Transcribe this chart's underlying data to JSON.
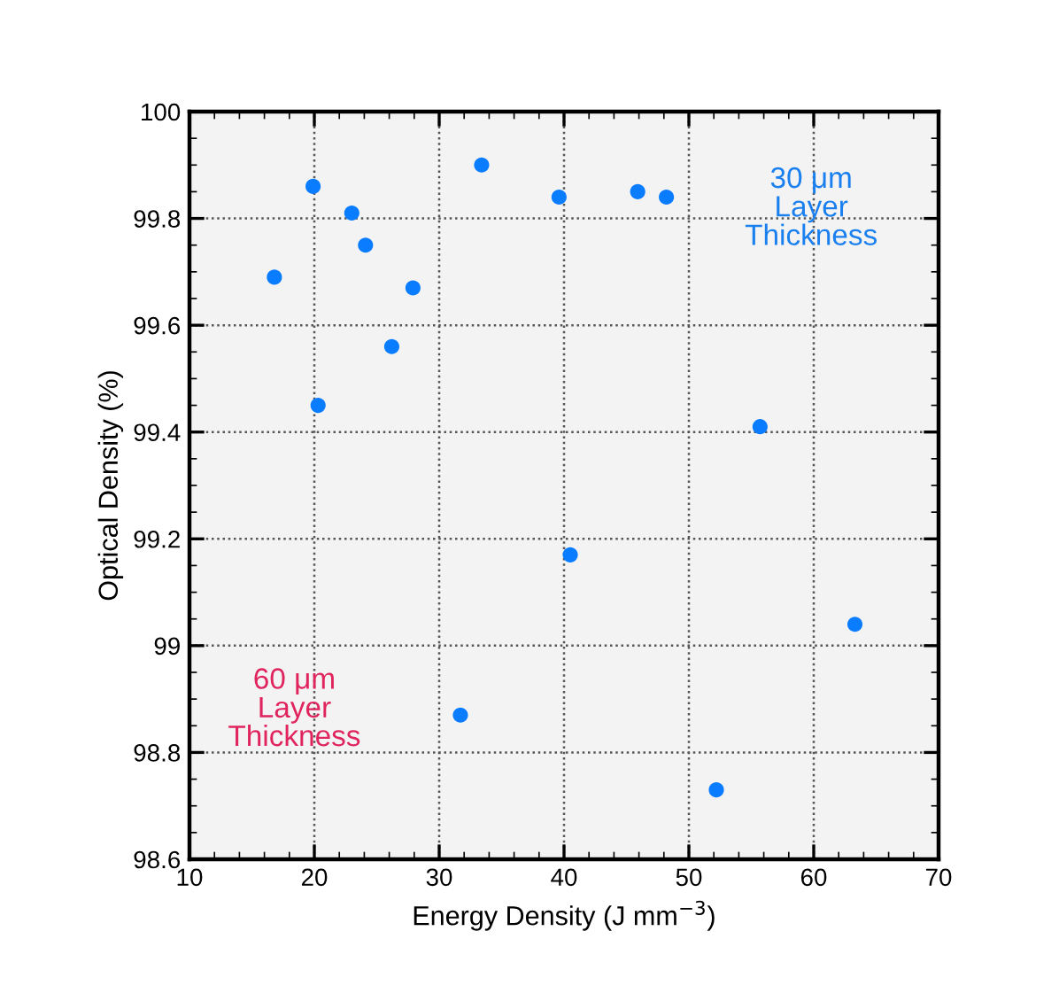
{
  "chart_data": {
    "type": "scatter",
    "xlabel": "Energy Density (J mm$^{−3}$)",
    "ylabel": "Optical Density (%)",
    "x": [
      19.9,
      33.4,
      23.0,
      24.1,
      16.8,
      27.9,
      26.2,
      20.3,
      39.6,
      45.9,
      48.2,
      55.7,
      40.5,
      63.3,
      31.7,
      52.2
    ],
    "values": [
      99.86,
      99.9,
      99.81,
      99.75,
      99.69,
      99.67,
      99.56,
      99.45,
      99.84,
      99.85,
      99.84,
      99.41,
      99.17,
      99.04,
      98.87,
      98.73
    ],
    "color": "#0a7cff",
    "marker": "circle",
    "xlim": [
      10,
      70
    ],
    "xticks": [
      10,
      20,
      30,
      40,
      50,
      60,
      70
    ],
    "ylim": [
      98.6,
      100
    ],
    "yticks": [
      98.6,
      98.8,
      {
        "value": 99.0,
        "label": "99"
      },
      99.2,
      99.4,
      99.6,
      99.8,
      100
    ],
    "grid": true,
    "annotations": [
      "30 μm\nLayer\nThickness",
      "60 μm\nLayer\nThickness"
    ]
  }
}
